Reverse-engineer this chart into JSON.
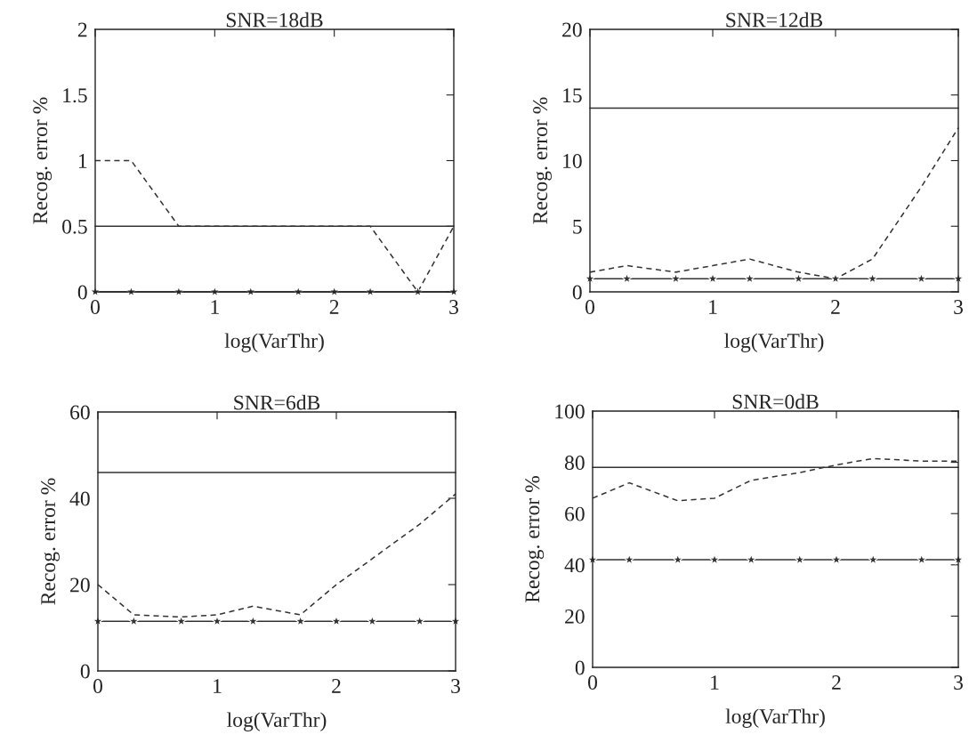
{
  "chart_data": [
    {
      "type": "line",
      "title": "SNR=18dB",
      "xlabel": "log(VarThr)",
      "ylabel": "Recog. error %",
      "xlim": [
        0,
        3
      ],
      "xticks": [
        0,
        1,
        2,
        3
      ],
      "ylim": [
        0,
        2
      ],
      "yticks": [
        0,
        0.5,
        1,
        1.5,
        2
      ],
      "grid": false,
      "legend": false,
      "x": [
        0,
        0.301,
        0.699,
        1,
        1.301,
        1.699,
        2,
        2.301,
        2.699,
        3
      ],
      "series": [
        {
          "color": "#333333",
          "line_style": "solid",
          "marker": "none",
          "values": [
            0.5,
            0.5,
            0.5,
            0.5,
            0.5,
            0.5,
            0.5,
            0.5,
            0.5,
            0.5
          ]
        },
        {
          "color": "#333333",
          "line_style": "dashed",
          "marker": "none",
          "values": [
            1,
            1,
            0.5,
            0.5,
            0.5,
            0.5,
            0.5,
            0.5,
            0,
            0.5
          ]
        },
        {
          "color": "#333333",
          "line_style": "solid",
          "marker": "star",
          "values": [
            0,
            0,
            0,
            0,
            0,
            0,
            0,
            0,
            0,
            0
          ]
        }
      ]
    },
    {
      "type": "line",
      "title": "SNR=12dB",
      "xlabel": "log(VarThr)",
      "ylabel": "Recog. error %",
      "xlim": [
        0,
        3
      ],
      "xticks": [
        0,
        1,
        2,
        3
      ],
      "ylim": [
        0,
        20
      ],
      "yticks": [
        0,
        5,
        10,
        15,
        20
      ],
      "grid": false,
      "legend": false,
      "x": [
        0,
        0.301,
        0.699,
        1,
        1.301,
        1.699,
        2,
        2.301,
        2.699,
        3
      ],
      "series": [
        {
          "color": "#333333",
          "line_style": "solid",
          "marker": "none",
          "values": [
            14,
            14,
            14,
            14,
            14,
            14,
            14,
            14,
            14,
            14
          ]
        },
        {
          "color": "#333333",
          "line_style": "dashed",
          "marker": "none",
          "values": [
            1.5,
            2,
            1.5,
            2,
            2.5,
            1.5,
            1,
            2.5,
            8,
            12.5
          ]
        },
        {
          "color": "#333333",
          "line_style": "solid",
          "marker": "star",
          "values": [
            1,
            1,
            1,
            1,
            1,
            1,
            1,
            1,
            1,
            1
          ]
        }
      ]
    },
    {
      "type": "line",
      "title": "SNR=6dB",
      "xlabel": "log(VarThr)",
      "ylabel": "Recog. error %",
      "xlim": [
        0,
        3
      ],
      "xticks": [
        0,
        1,
        2,
        3
      ],
      "ylim": [
        0,
        60
      ],
      "yticks": [
        0,
        20,
        40,
        60
      ],
      "grid": false,
      "legend": false,
      "x": [
        0,
        0.301,
        0.699,
        1,
        1.301,
        1.699,
        2,
        2.301,
        2.699,
        3
      ],
      "series": [
        {
          "color": "#333333",
          "line_style": "solid",
          "marker": "none",
          "values": [
            46,
            46,
            46,
            46,
            46,
            46,
            46,
            46,
            46,
            46
          ]
        },
        {
          "color": "#333333",
          "line_style": "dashed",
          "marker": "none",
          "values": [
            20,
            13,
            12.5,
            13,
            15,
            13,
            20,
            26,
            34,
            41
          ]
        },
        {
          "color": "#333333",
          "line_style": "solid",
          "marker": "star",
          "values": [
            11.5,
            11.5,
            11.5,
            11.5,
            11.5,
            11.5,
            11.5,
            11.5,
            11.5,
            11.5
          ]
        }
      ]
    },
    {
      "type": "line",
      "title": "SNR=0dB",
      "xlabel": "log(VarThr)",
      "ylabel": "Recog. error %",
      "xlim": [
        0,
        3
      ],
      "xticks": [
        0,
        1,
        2,
        3
      ],
      "ylim": [
        0,
        100
      ],
      "yticks": [
        0,
        20,
        40,
        60,
        80,
        100
      ],
      "grid": false,
      "legend": false,
      "x": [
        0,
        0.301,
        0.699,
        1,
        1.301,
        1.699,
        2,
        2.301,
        2.699,
        3
      ],
      "series": [
        {
          "color": "#333333",
          "line_style": "solid",
          "marker": "none",
          "values": [
            78,
            78,
            78,
            78,
            78,
            78,
            78,
            78,
            78,
            78
          ]
        },
        {
          "color": "#333333",
          "line_style": "dashed",
          "marker": "none",
          "values": [
            66,
            72,
            65,
            66,
            73,
            76,
            79,
            81.5,
            80.5,
            80.5
          ]
        },
        {
          "color": "#333333",
          "line_style": "solid",
          "marker": "star",
          "values": [
            42,
            42,
            42,
            42,
            42,
            42,
            42,
            42,
            42,
            42
          ]
        }
      ]
    }
  ]
}
